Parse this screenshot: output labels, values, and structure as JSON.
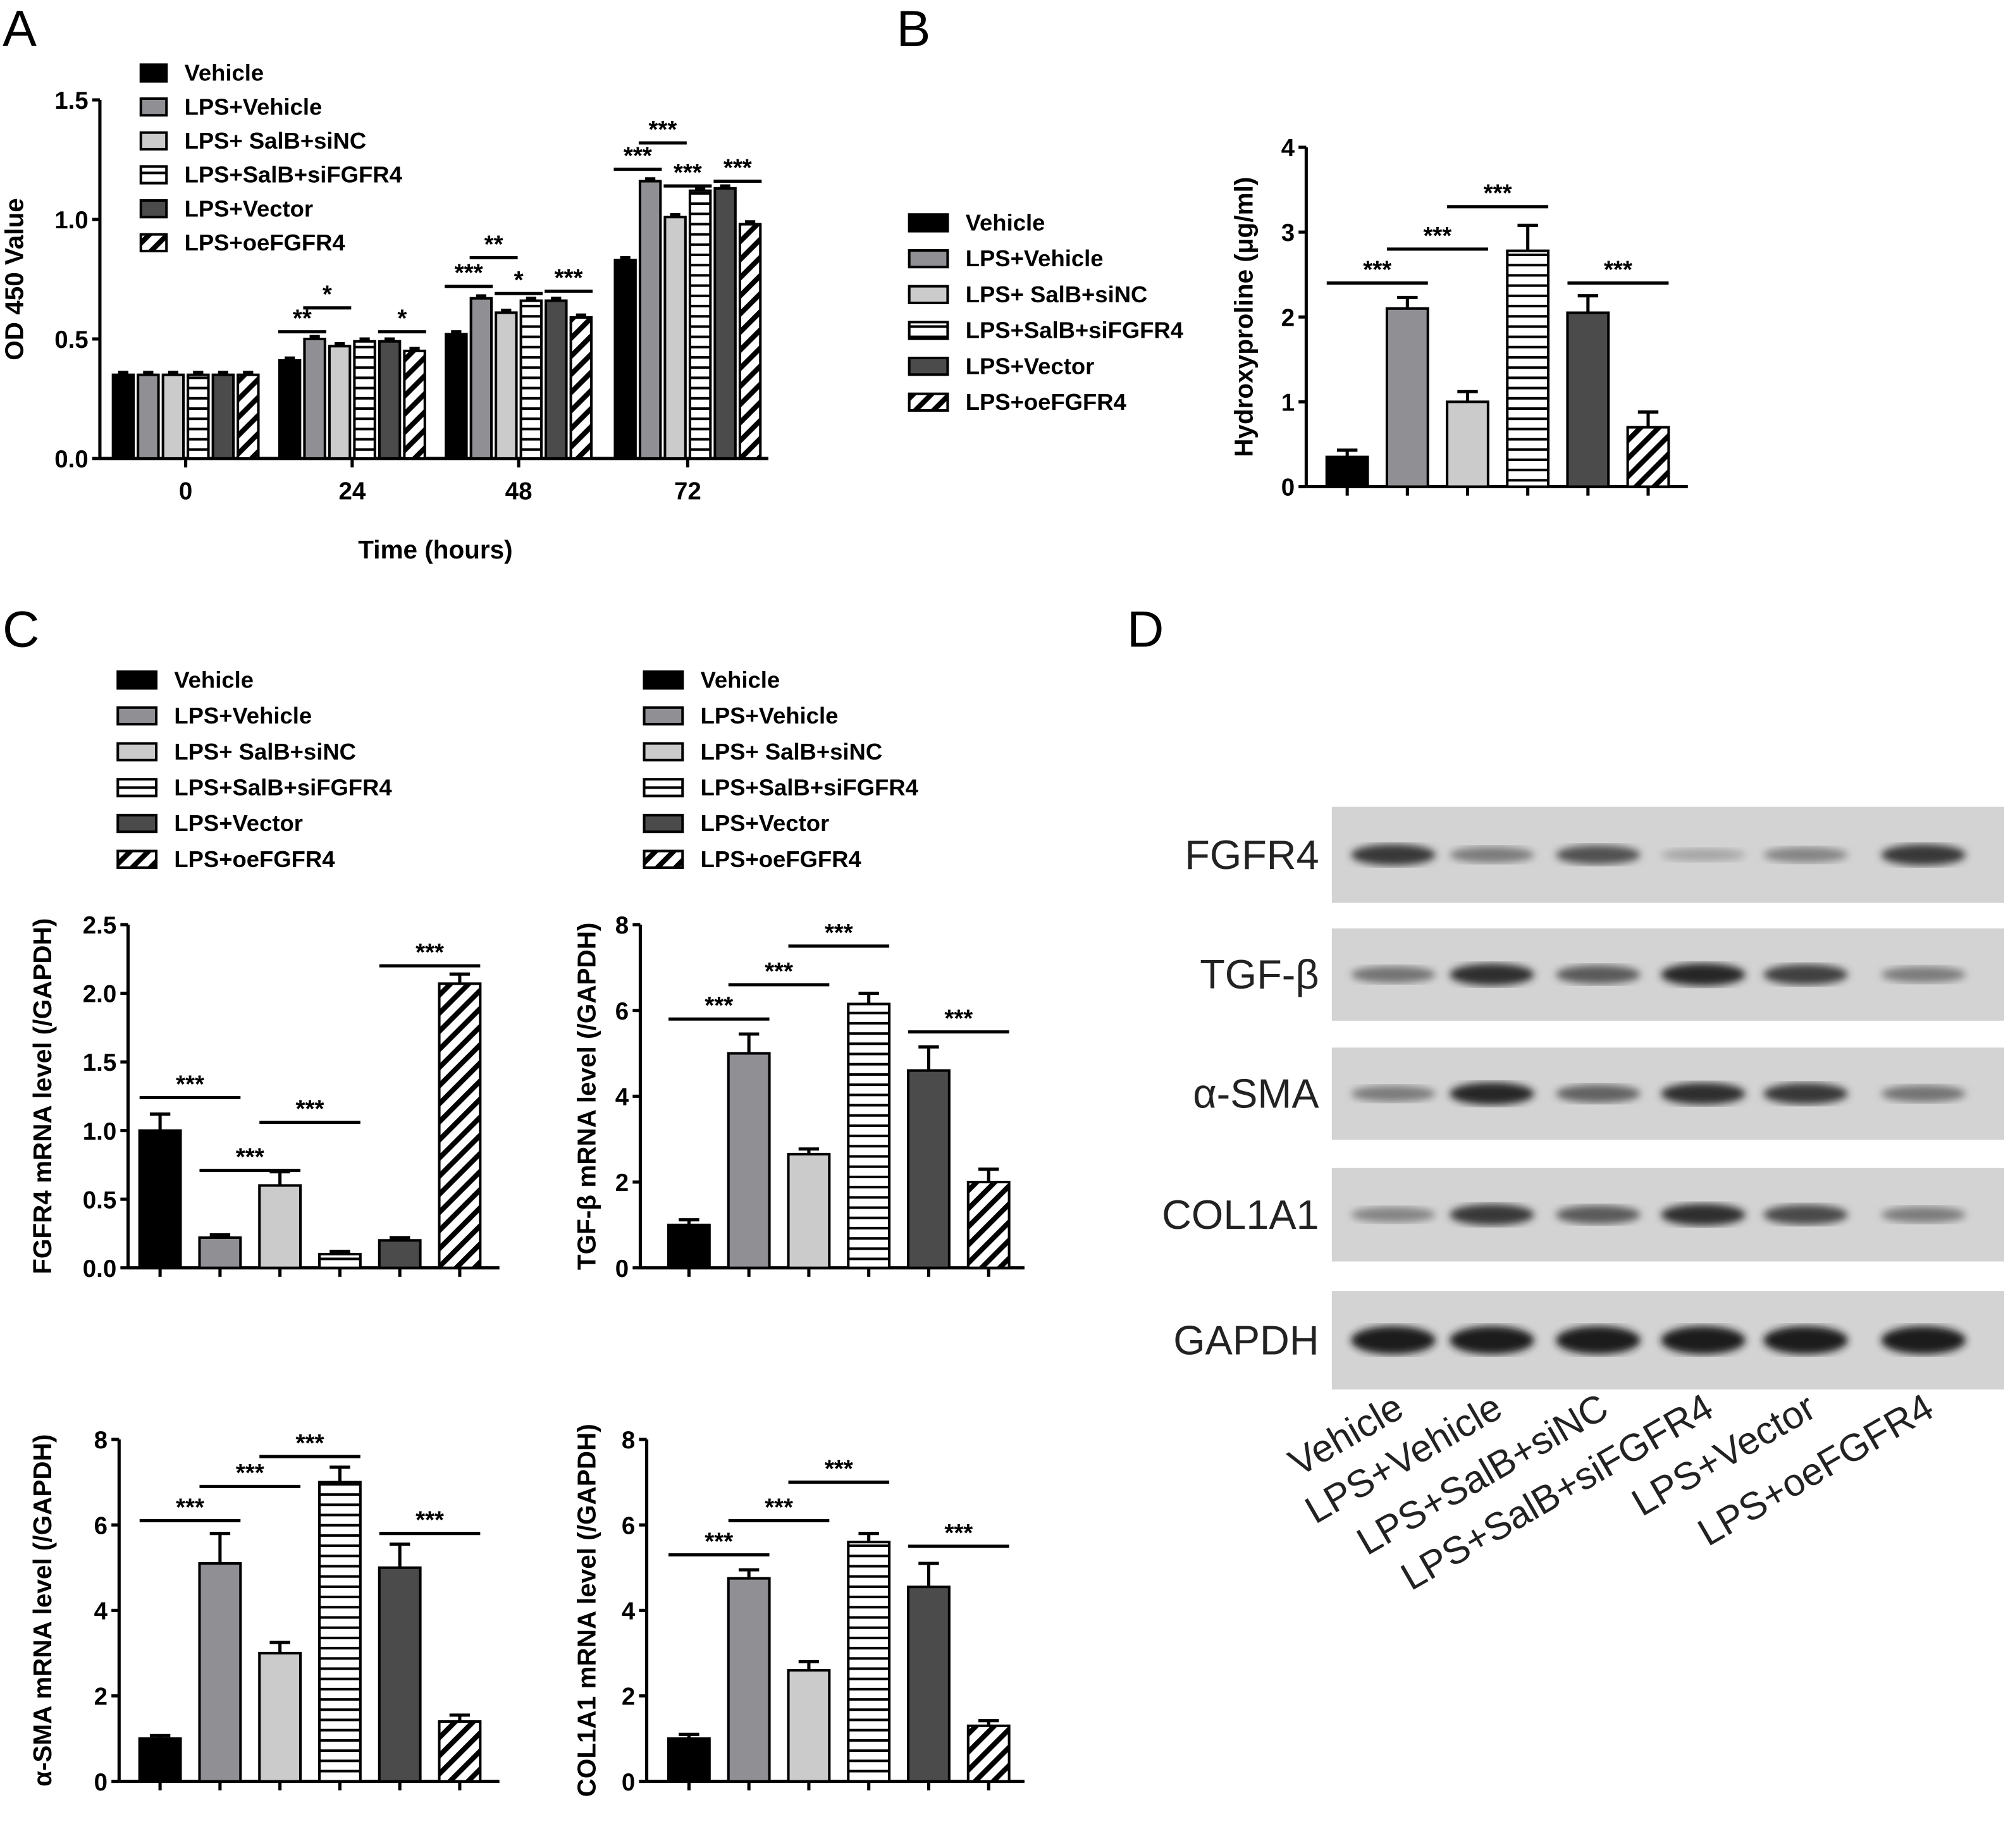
{
  "panels": {
    "A": "A",
    "B": "B",
    "C": "C",
    "D": "D"
  },
  "legend": [
    "Vehicle",
    "LPS+Vehicle",
    "LPS+ SalB+siNC",
    "LPS+SalB+siFGFR4",
    "LPS+Vector",
    "LPS+oeFGFR4"
  ],
  "styles": [
    {
      "fill": "#000000"
    },
    {
      "fill": "#8f8f94"
    },
    {
      "fill": "#cbcbcb"
    },
    {
      "fill": "url(#hstripe)"
    },
    {
      "fill": "#4b4b4b"
    },
    {
      "fill": "url(#diag)"
    }
  ],
  "chart_data": [
    {
      "id": "A",
      "type": "bar",
      "ylabel": "OD 450 Value",
      "xlabel": "Time (hours)",
      "ylim": [
        0,
        1.5
      ],
      "yticks": [
        "0.0",
        "0.5",
        "1.0",
        "1.5"
      ],
      "categories": [
        "0",
        "24",
        "48",
        "72"
      ],
      "series": [
        {
          "name": "Vehicle",
          "values": [
            0.35,
            0.41,
            0.52,
            0.83
          ]
        },
        {
          "name": "LPS+Vehicle",
          "values": [
            0.35,
            0.5,
            0.67,
            1.16
          ]
        },
        {
          "name": "LPS+ SalB+siNC",
          "values": [
            0.35,
            0.47,
            0.61,
            1.01
          ]
        },
        {
          "name": "LPS+SalB+siFGFR4",
          "values": [
            0.35,
            0.49,
            0.66,
            1.12
          ]
        },
        {
          "name": "LPS+Vector",
          "values": [
            0.35,
            0.49,
            0.66,
            1.13
          ]
        },
        {
          "name": "LPS+oeFGFR4",
          "values": [
            0.35,
            0.45,
            0.59,
            0.98
          ]
        }
      ],
      "significance": [
        {
          "group": "24",
          "from": 0,
          "to": 1,
          "label": "**",
          "y": 0.53
        },
        {
          "group": "24",
          "from": 1,
          "to": 2,
          "label": "*",
          "y": 0.63
        },
        {
          "group": "24",
          "from": 4,
          "to": 5,
          "label": "*",
          "y": 0.53
        },
        {
          "group": "48",
          "from": 0,
          "to": 1,
          "label": "***",
          "y": 0.72
        },
        {
          "group": "48",
          "from": 1,
          "to": 2,
          "label": "**",
          "y": 0.84
        },
        {
          "group": "48",
          "from": 2,
          "to": 3,
          "label": "*",
          "y": 0.69
        },
        {
          "group": "48",
          "from": 4,
          "to": 5,
          "label": "***",
          "y": 0.7
        },
        {
          "group": "72",
          "from": 0,
          "to": 1,
          "label": "***",
          "y": 1.21
        },
        {
          "group": "72",
          "from": 1,
          "to": 2,
          "label": "***",
          "y": 1.32
        },
        {
          "group": "72",
          "from": 2,
          "to": 3,
          "label": "***",
          "y": 1.14
        },
        {
          "group": "72",
          "from": 4,
          "to": 5,
          "label": "***",
          "y": 1.16
        }
      ]
    },
    {
      "id": "B",
      "type": "bar",
      "ylabel": "Hydroxyproline (μg/ml)",
      "ylim": [
        0,
        4
      ],
      "yticks": [
        "0",
        "1",
        "2",
        "3",
        "4"
      ],
      "categories": [
        "Vehicle",
        "LPS+Vehicle",
        "LPS+ SalB+siNC",
        "LPS+SalB+siFGFR4",
        "LPS+Vector",
        "LPS+oeFGFR4"
      ],
      "values": [
        0.35,
        2.1,
        1.0,
        2.78,
        2.05,
        0.7
      ],
      "errors": [
        0.08,
        0.13,
        0.12,
        0.3,
        0.2,
        0.18
      ],
      "significance": [
        {
          "from": 0,
          "to": 1,
          "label": "***",
          "y": 2.4
        },
        {
          "from": 1,
          "to": 2,
          "label": "***",
          "y": 2.8
        },
        {
          "from": 2,
          "to": 3,
          "label": "***",
          "y": 3.3
        },
        {
          "from": 4,
          "to": 5,
          "label": "***",
          "y": 2.4
        }
      ]
    },
    {
      "id": "C1",
      "type": "bar",
      "ylabel": "FGFR4 mRNA level (/GAPDH)",
      "ylim": [
        0,
        2.5
      ],
      "yticks": [
        "0.0",
        "0.5",
        "1.0",
        "1.5",
        "2.0",
        "2.5"
      ],
      "values": [
        1.0,
        0.22,
        0.6,
        0.1,
        0.2,
        2.07
      ],
      "errors": [
        0.12,
        0.02,
        0.1,
        0.02,
        0.02,
        0.07
      ],
      "significance": [
        {
          "from": 0,
          "to": 1,
          "label": "***",
          "y": 1.24
        },
        {
          "from": 1,
          "to": 2,
          "label": "***",
          "y": 0.71
        },
        {
          "from": 2,
          "to": 3,
          "label": "***",
          "y": 1.06
        },
        {
          "from": 4,
          "to": 5,
          "label": "***",
          "y": 2.2
        }
      ]
    },
    {
      "id": "C2",
      "type": "bar",
      "ylabel": "TGF-β mRNA level (/GAPDH)",
      "ylim": [
        0,
        8
      ],
      "yticks": [
        "0",
        "2",
        "4",
        "6",
        "8"
      ],
      "values": [
        1.0,
        5.0,
        2.65,
        6.15,
        4.6,
        2.0
      ],
      "errors": [
        0.12,
        0.45,
        0.12,
        0.25,
        0.55,
        0.3
      ],
      "significance": [
        {
          "from": 0,
          "to": 1,
          "label": "***",
          "y": 5.8
        },
        {
          "from": 1,
          "to": 2,
          "label": "***",
          "y": 6.6
        },
        {
          "from": 2,
          "to": 3,
          "label": "***",
          "y": 7.5
        },
        {
          "from": 4,
          "to": 5,
          "label": "***",
          "y": 5.5
        }
      ]
    },
    {
      "id": "C3",
      "type": "bar",
      "ylabel": "α-SMA mRNA level (/GAPDH)",
      "ylim": [
        0,
        8
      ],
      "yticks": [
        "0",
        "2",
        "4",
        "6",
        "8"
      ],
      "values": [
        1.0,
        5.1,
        3.0,
        7.0,
        5.0,
        1.4
      ],
      "errors": [
        0.07,
        0.7,
        0.25,
        0.35,
        0.55,
        0.15
      ],
      "significance": [
        {
          "from": 0,
          "to": 1,
          "label": "***",
          "y": 6.1
        },
        {
          "from": 1,
          "to": 2,
          "label": "***",
          "y": 6.9
        },
        {
          "from": 2,
          "to": 3,
          "label": "***",
          "y": 7.6
        },
        {
          "from": 4,
          "to": 5,
          "label": "***",
          "y": 5.8
        }
      ]
    },
    {
      "id": "C4",
      "type": "bar",
      "ylabel": "COL1A1 mRNA level (/GAPDH)",
      "ylim": [
        0,
        8
      ],
      "yticks": [
        "0",
        "2",
        "4",
        "6",
        "8"
      ],
      "values": [
        1.0,
        4.75,
        2.6,
        5.6,
        4.55,
        1.3
      ],
      "errors": [
        0.1,
        0.2,
        0.2,
        0.2,
        0.55,
        0.12
      ],
      "significance": [
        {
          "from": 0,
          "to": 1,
          "label": "***",
          "y": 5.3
        },
        {
          "from": 1,
          "to": 2,
          "label": "***",
          "y": 6.1
        },
        {
          "from": 2,
          "to": 3,
          "label": "***",
          "y": 7.0
        },
        {
          "from": 4,
          "to": 5,
          "label": "***",
          "y": 5.5
        }
      ]
    }
  ],
  "blot": {
    "proteins": [
      "FGFR4",
      "TGF-β",
      "α-SMA",
      "COL1A1",
      "GAPDH"
    ],
    "lanes": [
      "Vehicle",
      "LPS+Vehicle",
      "LPS+SalB+siNC",
      "LPS+SalB+siFGFR4",
      "LPS+Vector",
      "LPS+oeFGFR4"
    ],
    "intensity": [
      [
        0.85,
        0.45,
        0.7,
        0.2,
        0.4,
        0.85
      ],
      [
        0.5,
        0.9,
        0.65,
        0.95,
        0.8,
        0.45
      ],
      [
        0.45,
        0.95,
        0.6,
        0.9,
        0.85,
        0.5
      ],
      [
        0.4,
        0.85,
        0.65,
        0.9,
        0.75,
        0.45
      ],
      [
        1,
        1,
        1,
        1,
        1,
        1
      ]
    ]
  }
}
